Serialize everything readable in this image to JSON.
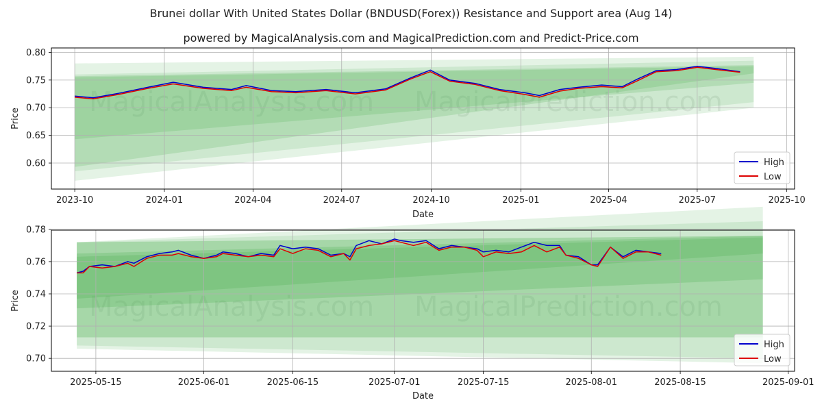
{
  "header": {
    "title": "Brunei dollar With United States Dollar (BNDUSD(Forex)) Resistance and Support area (Aug 14)",
    "subtitle": "powered by MagicalAnalysis.com and MagicalPrediction.com and Predict-Price.com"
  },
  "watermark": {
    "left": "MagicalAnalysis.com",
    "right": "MagicalPrediction.com"
  },
  "colors": {
    "high": "#0000cc",
    "low": "#dd0000",
    "band": "#4caf50"
  },
  "chart_data": [
    {
      "type": "line",
      "xlabel": "Date",
      "ylabel": "Price",
      "xlim": [
        "2023-09-07",
        "2025-10-09"
      ],
      "ylim": [
        0.553,
        0.808
      ],
      "x_ticks": [
        "2023-10",
        "2024-01",
        "2024-04",
        "2024-07",
        "2024-10",
        "2025-01",
        "2025-04",
        "2025-07",
        "2025-10"
      ],
      "y_ticks": [
        0.6,
        0.65,
        0.7,
        0.75,
        0.8
      ],
      "y_tick_labels": [
        "0.60",
        "0.65",
        "0.70",
        "0.75",
        "0.80"
      ],
      "grid": true,
      "legend": "bottom-right",
      "series": [
        {
          "name": "High",
          "color": "#0000cc",
          "x": [
            "2023-10-01",
            "2023-10-20",
            "2023-11-15",
            "2023-12-15",
            "2024-01-10",
            "2024-02-10",
            "2024-03-10",
            "2024-03-25",
            "2024-04-20",
            "2024-05-15",
            "2024-06-15",
            "2024-07-15",
            "2024-08-15",
            "2024-09-10",
            "2024-09-30",
            "2024-10-20",
            "2024-11-15",
            "2024-12-10",
            "2025-01-05",
            "2025-01-20",
            "2025-02-10",
            "2025-03-01",
            "2025-03-25",
            "2025-04-15",
            "2025-05-01",
            "2025-05-20",
            "2025-06-10",
            "2025-07-01",
            "2025-07-20",
            "2025-08-14"
          ],
          "values": [
            0.721,
            0.718,
            0.726,
            0.737,
            0.746,
            0.737,
            0.733,
            0.74,
            0.731,
            0.729,
            0.733,
            0.727,
            0.734,
            0.754,
            0.768,
            0.75,
            0.744,
            0.733,
            0.727,
            0.722,
            0.733,
            0.737,
            0.741,
            0.738,
            0.752,
            0.767,
            0.769,
            0.775,
            0.771,
            0.765
          ]
        },
        {
          "name": "Low",
          "color": "#dd0000",
          "x": [
            "2023-10-01",
            "2023-10-20",
            "2023-11-15",
            "2023-12-15",
            "2024-01-10",
            "2024-02-10",
            "2024-03-10",
            "2024-03-25",
            "2024-04-20",
            "2024-05-15",
            "2024-06-15",
            "2024-07-15",
            "2024-08-15",
            "2024-09-10",
            "2024-09-30",
            "2024-10-20",
            "2024-11-15",
            "2024-12-10",
            "2025-01-05",
            "2025-01-20",
            "2025-02-10",
            "2025-03-01",
            "2025-03-25",
            "2025-04-15",
            "2025-05-01",
            "2025-05-20",
            "2025-06-10",
            "2025-07-01",
            "2025-07-20",
            "2025-08-14"
          ],
          "values": [
            0.719,
            0.716,
            0.724,
            0.735,
            0.743,
            0.735,
            0.731,
            0.737,
            0.729,
            0.727,
            0.731,
            0.725,
            0.732,
            0.752,
            0.765,
            0.748,
            0.742,
            0.731,
            0.724,
            0.719,
            0.73,
            0.735,
            0.738,
            0.736,
            0.749,
            0.765,
            0.767,
            0.773,
            0.769,
            0.764
          ]
        }
      ],
      "bands": [
        {
          "x": [
            "2023-10-01",
            "2025-08-28"
          ],
          "upper": [
            0.78,
            0.792
          ],
          "lower": [
            0.568,
            0.7
          ],
          "opacity": 0.15
        },
        {
          "x": [
            "2023-10-01",
            "2025-08-28"
          ],
          "upper": [
            0.76,
            0.785
          ],
          "lower": [
            0.585,
            0.71
          ],
          "opacity": 0.15
        },
        {
          "x": [
            "2023-10-01",
            "2025-08-28"
          ],
          "upper": [
            0.757,
            0.777
          ],
          "lower": [
            0.643,
            0.745
          ],
          "opacity": 0.2
        },
        {
          "x": [
            "2023-10-01",
            "2025-08-28"
          ],
          "upper": [
            0.755,
            0.775
          ],
          "lower": [
            0.593,
            0.762
          ],
          "opacity": 0.2
        }
      ]
    },
    {
      "type": "line",
      "xlabel": "Date",
      "ylabel": "Price",
      "xlim": [
        "2025-05-08",
        "2025-09-02"
      ],
      "ylim": [
        0.692,
        0.7795
      ],
      "x_ticks": [
        "2025-05-15",
        "2025-06-01",
        "2025-06-15",
        "2025-07-01",
        "2025-07-15",
        "2025-08-01",
        "2025-08-15",
        "2025-09-01"
      ],
      "y_ticks": [
        0.7,
        0.72,
        0.74,
        0.76,
        0.78
      ],
      "y_tick_labels": [
        "0.70",
        "0.72",
        "0.74",
        "0.76",
        "0.78"
      ],
      "grid": true,
      "legend": "bottom-right",
      "series": [
        {
          "name": "High",
          "color": "#0000cc",
          "x": [
            "2025-05-12",
            "2025-05-13",
            "2025-05-14",
            "2025-05-16",
            "2025-05-18",
            "2025-05-20",
            "2025-05-21",
            "2025-05-23",
            "2025-05-25",
            "2025-05-27",
            "2025-05-28",
            "2025-05-30",
            "2025-06-01",
            "2025-06-03",
            "2025-06-04",
            "2025-06-06",
            "2025-06-08",
            "2025-06-10",
            "2025-06-12",
            "2025-06-13",
            "2025-06-15",
            "2025-06-17",
            "2025-06-19",
            "2025-06-21",
            "2025-06-23",
            "2025-06-24",
            "2025-06-25",
            "2025-06-27",
            "2025-06-29",
            "2025-07-01",
            "2025-07-02",
            "2025-07-04",
            "2025-07-06",
            "2025-07-08",
            "2025-07-10",
            "2025-07-12",
            "2025-07-14",
            "2025-07-15",
            "2025-07-17",
            "2025-07-19",
            "2025-07-21",
            "2025-07-23",
            "2025-07-25",
            "2025-07-27",
            "2025-07-28",
            "2025-07-30",
            "2025-08-01",
            "2025-08-02",
            "2025-08-04",
            "2025-08-06",
            "2025-08-08",
            "2025-08-10",
            "2025-08-12"
          ],
          "values": [
            0.753,
            0.754,
            0.757,
            0.758,
            0.757,
            0.76,
            0.759,
            0.763,
            0.765,
            0.766,
            0.767,
            0.764,
            0.762,
            0.764,
            0.766,
            0.765,
            0.763,
            0.765,
            0.764,
            0.77,
            0.768,
            0.769,
            0.768,
            0.764,
            0.765,
            0.763,
            0.77,
            0.773,
            0.771,
            0.774,
            0.773,
            0.772,
            0.773,
            0.768,
            0.77,
            0.769,
            0.768,
            0.766,
            0.767,
            0.766,
            0.769,
            0.772,
            0.77,
            0.77,
            0.764,
            0.763,
            0.758,
            0.758,
            0.769,
            0.763,
            0.767,
            0.766,
            0.765
          ]
        },
        {
          "name": "Low",
          "color": "#dd0000",
          "x": [
            "2025-05-12",
            "2025-05-13",
            "2025-05-14",
            "2025-05-16",
            "2025-05-18",
            "2025-05-20",
            "2025-05-21",
            "2025-05-23",
            "2025-05-25",
            "2025-05-27",
            "2025-05-28",
            "2025-05-30",
            "2025-06-01",
            "2025-06-03",
            "2025-06-04",
            "2025-06-06",
            "2025-06-08",
            "2025-06-10",
            "2025-06-12",
            "2025-06-13",
            "2025-06-15",
            "2025-06-17",
            "2025-06-19",
            "2025-06-21",
            "2025-06-23",
            "2025-06-24",
            "2025-06-25",
            "2025-06-27",
            "2025-06-29",
            "2025-07-01",
            "2025-07-02",
            "2025-07-04",
            "2025-07-06",
            "2025-07-08",
            "2025-07-10",
            "2025-07-12",
            "2025-07-14",
            "2025-07-15",
            "2025-07-17",
            "2025-07-19",
            "2025-07-21",
            "2025-07-23",
            "2025-07-25",
            "2025-07-27",
            "2025-07-28",
            "2025-07-30",
            "2025-08-01",
            "2025-08-02",
            "2025-08-04",
            "2025-08-06",
            "2025-08-08",
            "2025-08-10",
            "2025-08-12"
          ],
          "values": [
            0.753,
            0.753,
            0.757,
            0.756,
            0.757,
            0.759,
            0.757,
            0.762,
            0.764,
            0.764,
            0.765,
            0.763,
            0.762,
            0.763,
            0.765,
            0.764,
            0.763,
            0.764,
            0.763,
            0.768,
            0.765,
            0.768,
            0.767,
            0.763,
            0.765,
            0.761,
            0.768,
            0.77,
            0.771,
            0.773,
            0.772,
            0.77,
            0.772,
            0.767,
            0.769,
            0.769,
            0.767,
            0.763,
            0.766,
            0.765,
            0.766,
            0.77,
            0.766,
            0.769,
            0.764,
            0.762,
            0.758,
            0.757,
            0.769,
            0.762,
            0.766,
            0.766,
            0.764
          ]
        }
      ],
      "bands": [
        {
          "x": [
            "2025-05-12",
            "2025-08-28"
          ],
          "upper": [
            0.772,
            0.794
          ],
          "lower": [
            0.706,
            0.697
          ],
          "opacity": 0.15
        },
        {
          "x": [
            "2025-05-12",
            "2025-08-28"
          ],
          "upper": [
            0.772,
            0.785
          ],
          "lower": [
            0.708,
            0.7
          ],
          "opacity": 0.15
        },
        {
          "x": [
            "2025-05-12",
            "2025-08-28"
          ],
          "upper": [
            0.772,
            0.776
          ],
          "lower": [
            0.713,
            0.713
          ],
          "opacity": 0.3
        },
        {
          "x": [
            "2025-05-12",
            "2025-08-28"
          ],
          "upper": [
            0.765,
            0.776
          ],
          "lower": [
            0.731,
            0.749
          ],
          "opacity": 0.25
        },
        {
          "x": [
            "2025-05-12",
            "2025-08-28"
          ],
          "upper": [
            0.763,
            0.775
          ],
          "lower": [
            0.737,
            0.765
          ],
          "opacity": 0.25
        }
      ]
    }
  ]
}
